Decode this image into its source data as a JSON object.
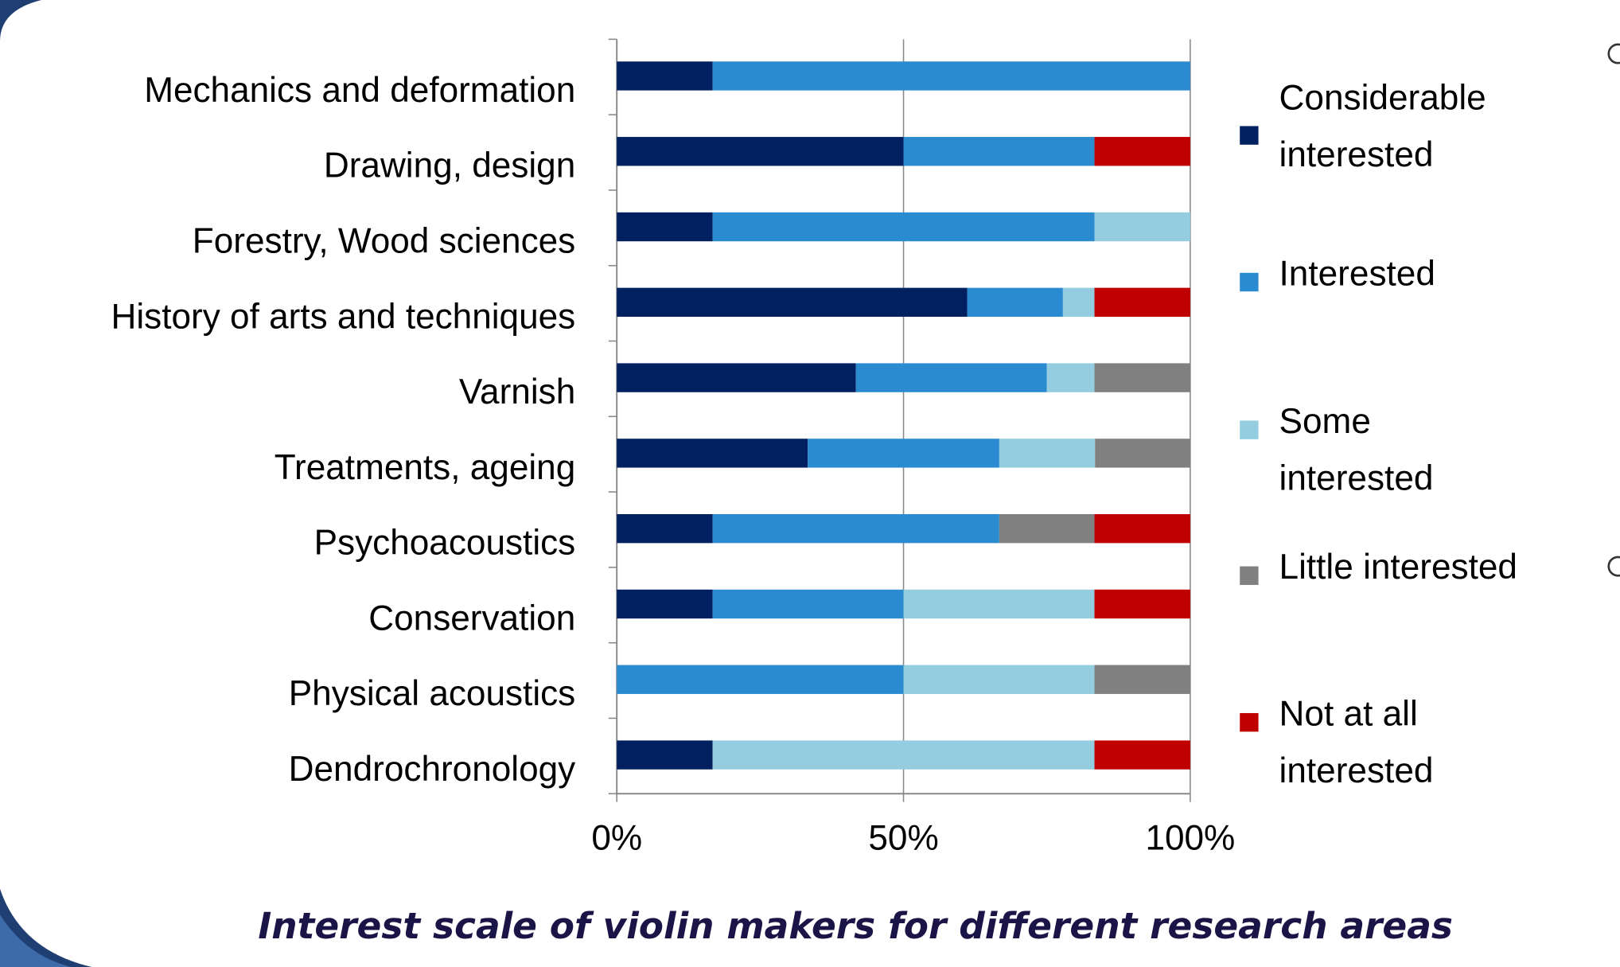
{
  "chart_data": {
    "type": "stacked-bar-horizontal",
    "title": "Interest scale of violin makers for different research areas",
    "categories": [
      "Mechanics and deformation",
      "Drawing, design",
      "Forestry, Wood sciences",
      "History of arts and techniques",
      "Varnish",
      "Treatments, ageing",
      "Psychoacoustics",
      "Conservation",
      "Physical acoustics",
      "Dendrochronology"
    ],
    "series": [
      {
        "name": "Considerable interested",
        "color": "#002060",
        "values": [
          16.7,
          50,
          16.7,
          61.1,
          41.7,
          33.3,
          16.7,
          16.7,
          0,
          16.7
        ]
      },
      {
        "name": "Interested",
        "color": "#2b8bd0",
        "values": [
          83.3,
          33.3,
          66.6,
          16.7,
          33.3,
          33.4,
          50,
          33.3,
          50,
          0
        ]
      },
      {
        "name": "Some interested",
        "color": "#93cddf",
        "values": [
          0,
          0,
          16.7,
          5.5,
          8.3,
          16.7,
          0,
          33.3,
          33.3,
          66.6
        ]
      },
      {
        "name": "Little interested",
        "color": "#808080",
        "values": [
          0,
          0,
          0,
          0,
          16.7,
          16.6,
          16.6,
          0,
          16.7,
          0
        ]
      },
      {
        "name": "Not at all interested",
        "color": "#c00000",
        "values": [
          0,
          16.7,
          0,
          16.7,
          0,
          0,
          16.7,
          16.7,
          0,
          16.7
        ]
      }
    ],
    "xlim": [
      0,
      100
    ],
    "xticks": [
      {
        "value": 0,
        "label": "0%"
      },
      {
        "value": 50,
        "label": "50%"
      },
      {
        "value": 100,
        "label": "100%"
      }
    ],
    "grid": true,
    "legend": "right"
  }
}
